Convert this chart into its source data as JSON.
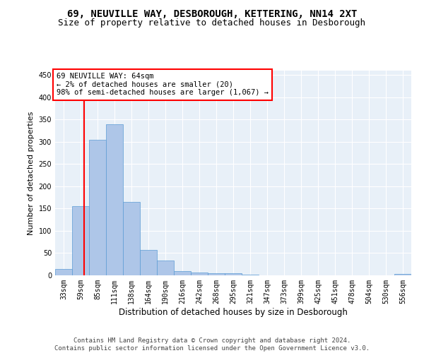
{
  "title1": "69, NEUVILLE WAY, DESBOROUGH, KETTERING, NN14 2XT",
  "title2": "Size of property relative to detached houses in Desborough",
  "xlabel": "Distribution of detached houses by size in Desborough",
  "ylabel": "Number of detached properties",
  "bin_labels": [
    "33sqm",
    "59sqm",
    "85sqm",
    "111sqm",
    "138sqm",
    "164sqm",
    "190sqm",
    "216sqm",
    "242sqm",
    "268sqm",
    "295sqm",
    "321sqm",
    "347sqm",
    "373sqm",
    "399sqm",
    "425sqm",
    "451sqm",
    "478sqm",
    "504sqm",
    "530sqm",
    "556sqm"
  ],
  "bar_values": [
    15,
    155,
    305,
    340,
    165,
    57,
    33,
    10,
    6,
    4,
    4,
    1,
    0,
    0,
    0,
    0,
    0,
    0,
    0,
    0,
    3
  ],
  "bar_color": "#aec6e8",
  "bar_edge_color": "#5b9bd5",
  "annotation_text": "69 NEUVILLE WAY: 64sqm\n← 2% of detached houses are smaller (20)\n98% of semi-detached houses are larger (1,067) →",
  "annotation_box_color": "white",
  "annotation_box_edge_color": "red",
  "property_line_color": "red",
  "ylim": [
    0,
    460
  ],
  "yticks": [
    0,
    50,
    100,
    150,
    200,
    250,
    300,
    350,
    400,
    450
  ],
  "background_color": "#e8f0f8",
  "footer_text": "Contains HM Land Registry data © Crown copyright and database right 2024.\nContains public sector information licensed under the Open Government Licence v3.0.",
  "title1_fontsize": 10,
  "title2_fontsize": 9,
  "xlabel_fontsize": 8.5,
  "ylabel_fontsize": 8,
  "annotation_fontsize": 7.5,
  "footer_fontsize": 6.5,
  "tick_fontsize": 7
}
